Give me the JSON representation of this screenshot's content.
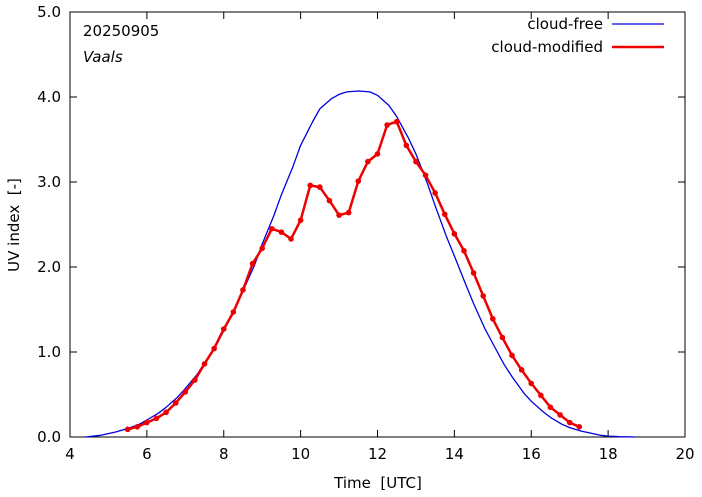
{
  "chart_data": {
    "type": "line",
    "annotations": {
      "date": "20250905",
      "location": "Vaals"
    },
    "xlabel": "Time  [UTC]",
    "ylabel": "UV index  [-]",
    "xlim": [
      4,
      20
    ],
    "ylim": [
      0,
      5
    ],
    "xticks": [
      4,
      6,
      8,
      10,
      12,
      14,
      16,
      18,
      20
    ],
    "xtick_labels": [
      "4",
      "6",
      "8",
      "10",
      "12",
      "14",
      "16",
      "18",
      "20"
    ],
    "yticks": [
      0,
      1,
      2,
      3,
      4,
      5
    ],
    "ytick_labels": [
      "0.0",
      "1.0",
      "2.0",
      "3.0",
      "4.0",
      "5.0"
    ],
    "legend_position": "top-right",
    "series": [
      {
        "name": "cloud-free",
        "color": "#0000dd",
        "style": "line",
        "x": [
          4.4,
          4.8,
          5.0,
          5.2,
          5.5,
          5.8,
          6.0,
          6.3,
          6.5,
          6.8,
          7.0,
          7.3,
          7.5,
          7.8,
          8.0,
          8.3,
          8.5,
          8.8,
          9.0,
          9.3,
          9.5,
          9.8,
          10.0,
          10.3,
          10.5,
          10.8,
          11.0,
          11.2,
          11.5,
          11.8,
          12.0,
          12.3,
          12.5,
          12.8,
          13.0,
          13.3,
          13.5,
          13.8,
          14.0,
          14.3,
          14.5,
          14.8,
          15.0,
          15.3,
          15.5,
          15.8,
          16.0,
          16.3,
          16.5,
          16.8,
          17.0,
          17.3,
          17.5,
          17.8,
          18.0,
          18.3,
          18.7
        ],
        "y": [
          0.0,
          0.02,
          0.04,
          0.06,
          0.1,
          0.15,
          0.2,
          0.28,
          0.35,
          0.47,
          0.57,
          0.73,
          0.87,
          1.08,
          1.25,
          1.52,
          1.72,
          2.02,
          2.27,
          2.6,
          2.85,
          3.18,
          3.43,
          3.7,
          3.86,
          3.98,
          4.03,
          4.06,
          4.07,
          4.06,
          4.02,
          3.9,
          3.77,
          3.52,
          3.33,
          2.98,
          2.72,
          2.35,
          2.13,
          1.79,
          1.57,
          1.27,
          1.1,
          0.85,
          0.71,
          0.52,
          0.42,
          0.3,
          0.23,
          0.15,
          0.11,
          0.07,
          0.05,
          0.02,
          0.01,
          0.003,
          0.0
        ]
      },
      {
        "name": "cloud-modified",
        "color": "#ee0000",
        "style": "line-points",
        "x": [
          5.5,
          5.75,
          6.0,
          6.25,
          6.5,
          6.75,
          7.0,
          7.25,
          7.5,
          7.75,
          8.0,
          8.25,
          8.5,
          8.75,
          9.0,
          9.25,
          9.5,
          9.75,
          10.0,
          10.25,
          10.5,
          10.75,
          11.0,
          11.25,
          11.5,
          11.75,
          12.0,
          12.25,
          12.5,
          12.75,
          13.0,
          13.25,
          13.5,
          13.75,
          14.0,
          14.25,
          14.5,
          14.75,
          15.0,
          15.25,
          15.5,
          15.75,
          16.0,
          16.25,
          16.5,
          16.75,
          17.0,
          17.25
        ],
        "y": [
          0.09,
          0.12,
          0.17,
          0.22,
          0.29,
          0.4,
          0.53,
          0.67,
          0.86,
          1.04,
          1.27,
          1.47,
          1.73,
          2.04,
          2.22,
          2.45,
          2.41,
          2.33,
          2.55,
          2.96,
          2.94,
          2.78,
          2.61,
          2.64,
          3.01,
          3.24,
          3.33,
          3.67,
          3.71,
          3.43,
          3.24,
          3.08,
          2.87,
          2.62,
          2.39,
          2.19,
          1.93,
          1.66,
          1.39,
          1.17,
          0.96,
          0.79,
          0.63,
          0.49,
          0.35,
          0.26,
          0.17,
          0.12
        ]
      }
    ]
  }
}
